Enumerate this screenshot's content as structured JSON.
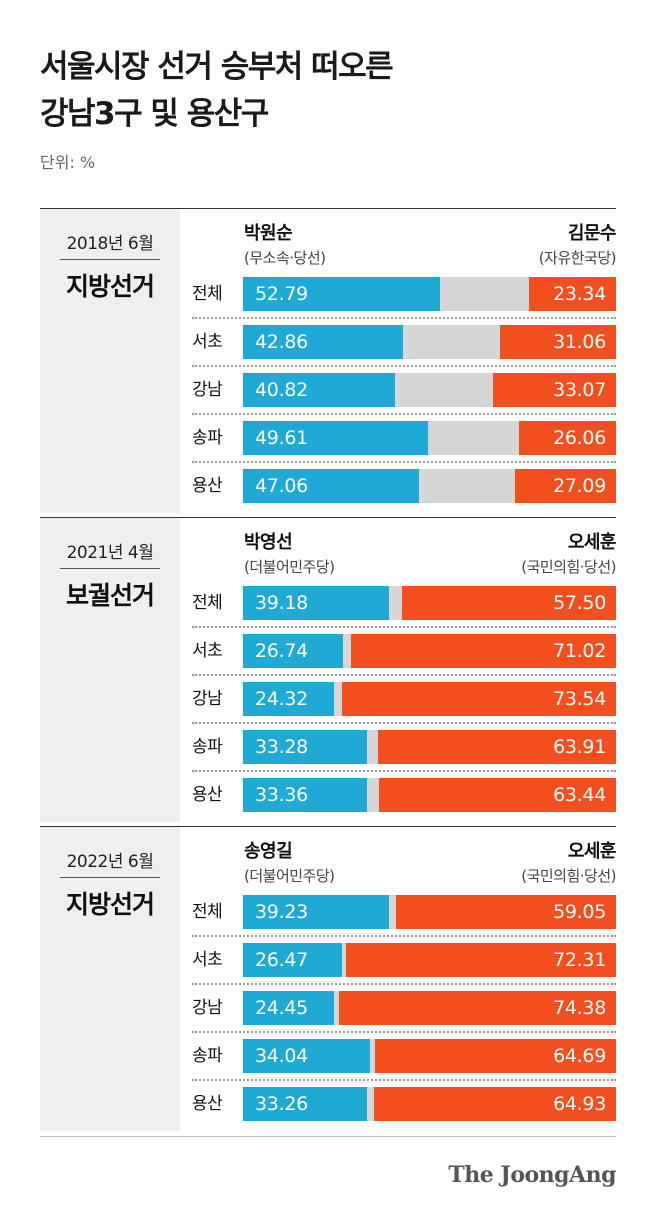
{
  "title_lines": [
    "서울시장 선거 승부처 떠오른",
    "강남3구 및 용산구"
  ],
  "unit": "단위: %",
  "logo": "The JoongAng",
  "chart_data": [
    {
      "type": "bar",
      "year": "2018년 6월",
      "election": "지방선거",
      "left_candidate": "박원순",
      "left_party": "(무소속·당선)",
      "right_candidate": "김문수",
      "right_party": "(자유한국당)",
      "categories": [
        "전체",
        "서초",
        "강남",
        "송파",
        "용산"
      ],
      "series": [
        {
          "name": "박원순",
          "values": [
            52.79,
            42.86,
            40.82,
            49.61,
            47.06
          ]
        },
        {
          "name": "김문수",
          "values": [
            23.34,
            31.06,
            33.07,
            26.06,
            27.09
          ]
        }
      ],
      "labels_left": [
        "52.79",
        "42.86",
        "40.82",
        "49.61",
        "47.06"
      ],
      "labels_right": [
        "23.34",
        "31.06",
        "33.07",
        "26.06",
        "27.09"
      ],
      "colors": {
        "left": "#1fa9d5",
        "right": "#f24e1e",
        "rest": "#d6d6d6"
      }
    },
    {
      "type": "bar",
      "year": "2021년 4월",
      "election": "보궐선거",
      "left_candidate": "박영선",
      "left_party": "(더불어민주당)",
      "right_candidate": "오세훈",
      "right_party": "(국민의힘·당선)",
      "categories": [
        "전체",
        "서초",
        "강남",
        "송파",
        "용산"
      ],
      "series": [
        {
          "name": "박영선",
          "values": [
            39.18,
            26.74,
            24.32,
            33.28,
            33.36
          ]
        },
        {
          "name": "오세훈",
          "values": [
            57.5,
            71.02,
            73.54,
            63.91,
            63.44
          ]
        }
      ],
      "labels_left": [
        "39.18",
        "26.74",
        "24.32",
        "33.28",
        "33.36"
      ],
      "labels_right": [
        "57.50",
        "71.02",
        "73.54",
        "63.91",
        "63.44"
      ],
      "colors": {
        "left": "#1fa9d5",
        "right": "#f24e1e",
        "rest": "#d6d6d6"
      }
    },
    {
      "type": "bar",
      "year": "2022년 6월",
      "election": "지방선거",
      "left_candidate": "송영길",
      "left_party": "(더불어민주당)",
      "right_candidate": "오세훈",
      "right_party": "(국민의힘·당선)",
      "categories": [
        "전체",
        "서초",
        "강남",
        "송파",
        "용산"
      ],
      "series": [
        {
          "name": "송영길",
          "values": [
            39.23,
            26.47,
            24.45,
            34.04,
            33.26
          ]
        },
        {
          "name": "오세훈",
          "values": [
            59.05,
            72.31,
            74.38,
            64.69,
            64.93
          ]
        }
      ],
      "labels_left": [
        "39.23",
        "26.47",
        "24.45",
        "34.04",
        "33.26"
      ],
      "labels_right": [
        "59.05",
        "72.31",
        "74.38",
        "64.69",
        "64.93"
      ],
      "colors": {
        "left": "#1fa9d5",
        "right": "#f24e1e",
        "rest": "#d6d6d6"
      }
    }
  ]
}
